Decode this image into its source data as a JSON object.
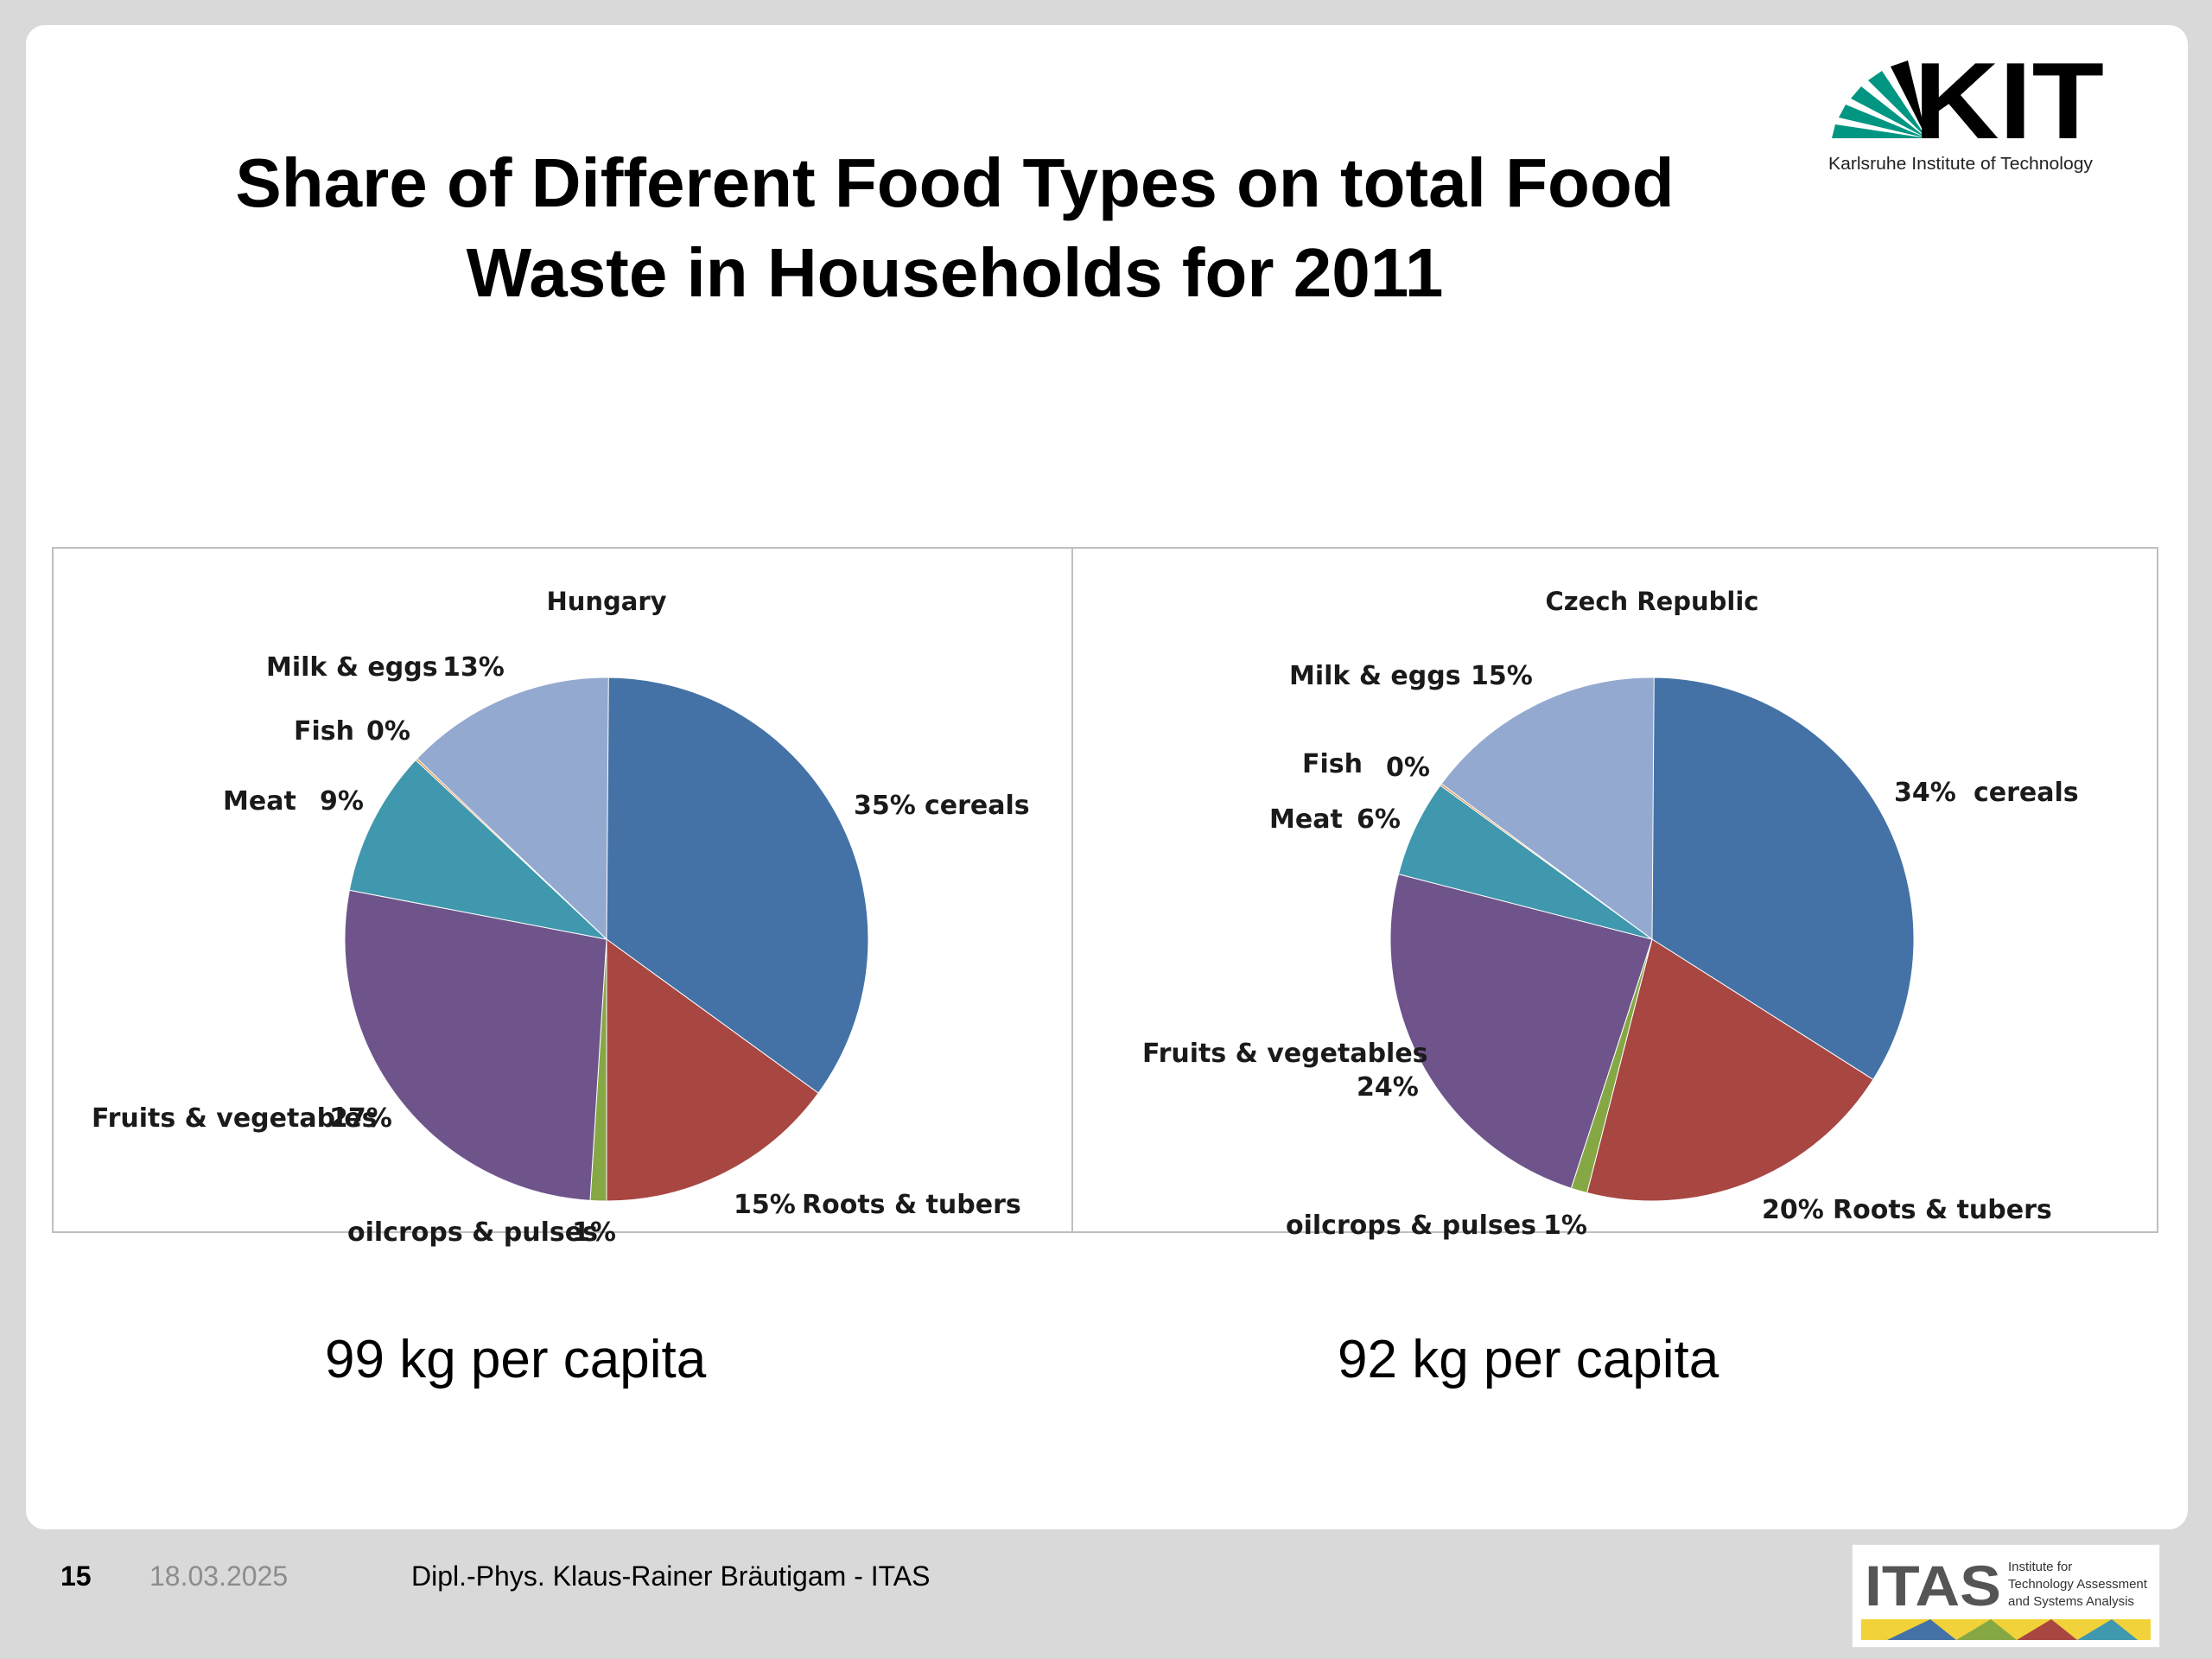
{
  "slide": {
    "title_line1": "Share of Different Food Types on total Food",
    "title_line2": "Waste in Households for 2011",
    "kit_logo_text": "KIT",
    "kit_logo_subtitle": "Karlsruhe Institute of Technology",
    "left_caption": "99 kg per capita",
    "right_caption": "92 kg per capita"
  },
  "footer": {
    "page_number": "15",
    "date": "18.03.2025",
    "author": "Dipl.-Phys. Klaus-Rainer Bräutigam - ITAS",
    "itas_logo_text": "ITAS",
    "itas_logo_subtitle": [
      "Institute for",
      "Technology Assessment",
      "and Systems Analysis"
    ]
  },
  "colors": {
    "cereals": "#4472a6",
    "roots": "#a84642",
    "oilcrops": "#86a844",
    "fruits": "#6e548b",
    "meat": "#3f98ad",
    "fish": "#da8232",
    "milk": "#94a9d0",
    "kit_green": "#009682"
  },
  "chart_data": [
    {
      "type": "pie",
      "title": "Hungary",
      "categories": [
        "cereals",
        "Roots & tubers",
        "oilcrops & pulses",
        "Fruits & vegetables",
        "Meat",
        "Fish",
        "Milk & eggs"
      ],
      "values": [
        35,
        15,
        1,
        27,
        9,
        0,
        13
      ],
      "value_labels": [
        "35%",
        "15%",
        "1%",
        "27%",
        "9%",
        "0%",
        "13%"
      ]
    },
    {
      "type": "pie",
      "title": "Czech Republic",
      "categories": [
        "cereals",
        "Roots & tubers",
        "oilcrops & pulses",
        "Fruits & vegetables",
        "Meat",
        "Fish",
        "Milk & eggs"
      ],
      "values": [
        34,
        20,
        1,
        24,
        6,
        0,
        15
      ],
      "value_labels": [
        "34%",
        "20%",
        "1%",
        "24%",
        "6%",
        "0%",
        "15%"
      ]
    }
  ]
}
